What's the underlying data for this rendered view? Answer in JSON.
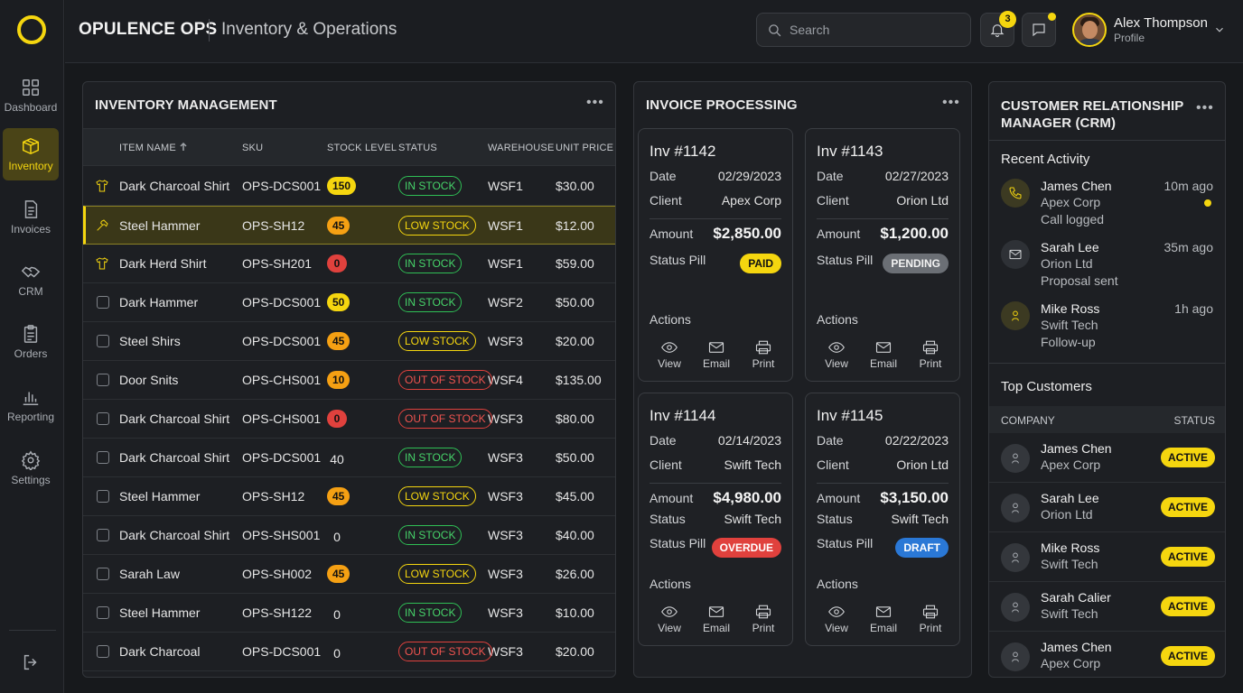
{
  "header": {
    "brand": "OPULENCE OPS",
    "subtitle": "Inventory & Operations",
    "search_placeholder": "Search",
    "notifications_count": "3",
    "user_name": "Alex Thompson",
    "user_role": "Profile"
  },
  "sidebar": {
    "items": [
      {
        "label": "Dashboard",
        "icon": "grid-icon"
      },
      {
        "label": "Inventory",
        "icon": "box-icon",
        "active": true
      },
      {
        "label": "Invoices",
        "icon": "document-icon"
      },
      {
        "label": "CRM",
        "icon": "handshake-icon"
      },
      {
        "label": "Orders",
        "icon": "clipboard-icon"
      },
      {
        "label": "Reporting",
        "icon": "bar-chart-icon"
      },
      {
        "label": "Settings",
        "icon": "gear-icon"
      }
    ],
    "logout_icon": "logout-icon"
  },
  "inventory": {
    "title": "INVENTORY MANAGEMENT",
    "columns": [
      "ITEM NAME",
      "SKU",
      "STOCK LEVEL",
      "STATUS",
      "WAREHOUSE",
      "UNIT PRICE"
    ],
    "rows": [
      {
        "icon": "shirt-icon",
        "name": "Dark Charcoal Shirt",
        "sku": "OPS-DCS001",
        "stock": "150",
        "stock_color": "yellow",
        "status": "IN STOCK",
        "status_kind": "in",
        "warehouse": "WSF1",
        "price": "$30.00"
      },
      {
        "icon": "hammer-icon",
        "name": "Steel Hammer",
        "sku": "OPS-SH12",
        "stock": "45",
        "stock_color": "orange",
        "status": "LOW STOCK",
        "status_kind": "low",
        "warehouse": "WSF1",
        "price": "$12.00",
        "highlight": true
      },
      {
        "icon": "shirt-icon",
        "name": "Dark Herd Shirt",
        "sku": "OPS-SH201",
        "stock": "0",
        "stock_color": "red",
        "status": "IN STOCK",
        "status_kind": "in",
        "warehouse": "WSF1",
        "price": "$59.00"
      },
      {
        "icon": "checkbox",
        "name": "Dark Hammer",
        "sku": "OPS-DCS001",
        "stock": "50",
        "stock_color": "yellow",
        "status": "IN STOCK",
        "status_kind": "in",
        "warehouse": "WSF2",
        "price": "$50.00"
      },
      {
        "icon": "checkbox",
        "name": "Steel Shirs",
        "sku": "OPS-DCS001",
        "stock": "45",
        "stock_color": "orange",
        "status": "LOW STOCK",
        "status_kind": "low",
        "warehouse": "WSF3",
        "price": "$20.00"
      },
      {
        "icon": "checkbox",
        "name": "Door Snits",
        "sku": "OPS-CHS001",
        "stock": "10",
        "stock_color": "orange",
        "status": "OUT OF STOCK",
        "status_kind": "out",
        "warehouse": "WSF4",
        "price": "$135.00"
      },
      {
        "icon": "checkbox",
        "name": "Dark Charcoal Shirt",
        "sku": "OPS-CHS001",
        "stock": "0",
        "stock_color": "red",
        "status": "OUT OF STOCK",
        "status_kind": "out",
        "warehouse": "WSF3",
        "price": "$80.00"
      },
      {
        "icon": "checkbox",
        "name": "Dark Charcoal Shirt",
        "sku": "OPS-DCS001",
        "stock": "40",
        "stock_color": "none",
        "status": "IN STOCK",
        "status_kind": "in",
        "warehouse": "WSF3",
        "price": "$50.00"
      },
      {
        "icon": "checkbox",
        "name": "Steel Hammer",
        "sku": "OPS-SH12",
        "stock": "45",
        "stock_color": "orange",
        "status": "LOW STOCK",
        "status_kind": "low",
        "warehouse": "WSF3",
        "price": "$45.00"
      },
      {
        "icon": "checkbox",
        "name": "Dark Charcoal Shirt",
        "sku": "OPS-SHS001",
        "stock": "0",
        "stock_color": "none",
        "status": "IN STOCK",
        "status_kind": "in",
        "warehouse": "WSF3",
        "price": "$40.00"
      },
      {
        "icon": "checkbox",
        "name": "Sarah Law",
        "sku": "OPS-SH002",
        "stock": "45",
        "stock_color": "orange",
        "status": "LOW STOCK",
        "status_kind": "low",
        "warehouse": "WSF3",
        "price": "$26.00"
      },
      {
        "icon": "checkbox",
        "name": "Steel Hammer",
        "sku": "OPS-SH122",
        "stock": "0",
        "stock_color": "none",
        "status": "IN STOCK",
        "status_kind": "in",
        "warehouse": "WSF3",
        "price": "$10.00"
      },
      {
        "icon": "checkbox",
        "name": "Dark Charcoal",
        "sku": "OPS-DCS001",
        "stock": "0",
        "stock_color": "none",
        "status": "OUT OF STOCK",
        "status_kind": "out",
        "warehouse": "WSF3",
        "price": "$20.00"
      }
    ]
  },
  "invoices": {
    "title": "INVOICE PROCESSING",
    "cards": [
      {
        "title": "Inv #1142",
        "date_label": "Date",
        "date": "02/29/2023",
        "client_label": "Client",
        "client": "Apex Corp",
        "amount_label": "Amount",
        "amount": "$2,850.00",
        "status_pill_label": "Status Pill",
        "pill": "PAID",
        "pill_kind": "paid",
        "actions_label": "Actions"
      },
      {
        "title": "Inv #1143",
        "date_label": "Date",
        "date": "02/27/2023",
        "client_label": "Client",
        "client": "Orion Ltd",
        "amount_label": "Amount",
        "amount": "$1,200.00",
        "status_pill_label": "Status Pill",
        "pill": "PENDING",
        "pill_kind": "pending",
        "actions_label": "Actions"
      },
      {
        "title": "Inv #1144",
        "date_label": "Date",
        "date": "02/14/2023",
        "client_label": "Client",
        "client": "Swift Tech",
        "amount_label": "Amount",
        "amount": "$4,980.00",
        "status_label": "Status",
        "status": "Swift Tech",
        "status_pill_label": "Status Pill",
        "pill": "OVERDUE",
        "pill_kind": "overdue",
        "actions_label": "Actions"
      },
      {
        "title": "Inv #1145",
        "date_label": "Date",
        "date": "02/22/2023",
        "client_label": "Client",
        "client": "Orion Ltd",
        "amount_label": "Amount",
        "amount": "$3,150.00",
        "status_label": "Status",
        "status": "Swift Tech",
        "status_pill_label": "Status Pill",
        "pill": "DRAFT",
        "pill_kind": "draft",
        "actions_label": "Actions"
      }
    ],
    "actions": [
      "View",
      "Email",
      "Print"
    ]
  },
  "crm": {
    "title_line1": "CUSTOMER RELATIONSHIP",
    "title_line2": "MANAGER (CRM)",
    "recent_title": "Recent Activity",
    "activity": [
      {
        "icon": "phone-icon",
        "name": "James Chen",
        "company": "Apex Corp",
        "note": "Call logged",
        "time": "10m ago",
        "unread": true
      },
      {
        "icon": "mail-icon",
        "name": "Sarah Lee",
        "company": "Orion Ltd",
        "note": "Proposal sent",
        "time": "35m ago",
        "unread": false
      },
      {
        "icon": "user-icon",
        "name": "Mike Ross",
        "company": "Swift Tech",
        "note": "Follow-up",
        "time": "1h ago",
        "unread": false
      }
    ],
    "top_title": "Top Customers",
    "columns": [
      "COMPANY",
      "STATUS"
    ],
    "customers": [
      {
        "name": "James Chen",
        "company": "Apex Corp",
        "status": "ACTIVE"
      },
      {
        "name": "Sarah Lee",
        "company": "Orion Ltd",
        "status": "ACTIVE"
      },
      {
        "name": "Mike Ross",
        "company": "Swift Tech",
        "status": "ACTIVE"
      },
      {
        "name": "Sarah Calier",
        "company": "Swift Tech",
        "status": "ACTIVE"
      },
      {
        "name": "James Chen",
        "company": "Apex Corp",
        "status": "ACTIVE"
      }
    ]
  },
  "colors": {
    "accent": "#f5d60f",
    "in_stock": "#2fbf55",
    "out_of_stock": "#e0413d",
    "orange": "#f5a013",
    "draft": "#2a78d6",
    "background": "#17191c"
  }
}
